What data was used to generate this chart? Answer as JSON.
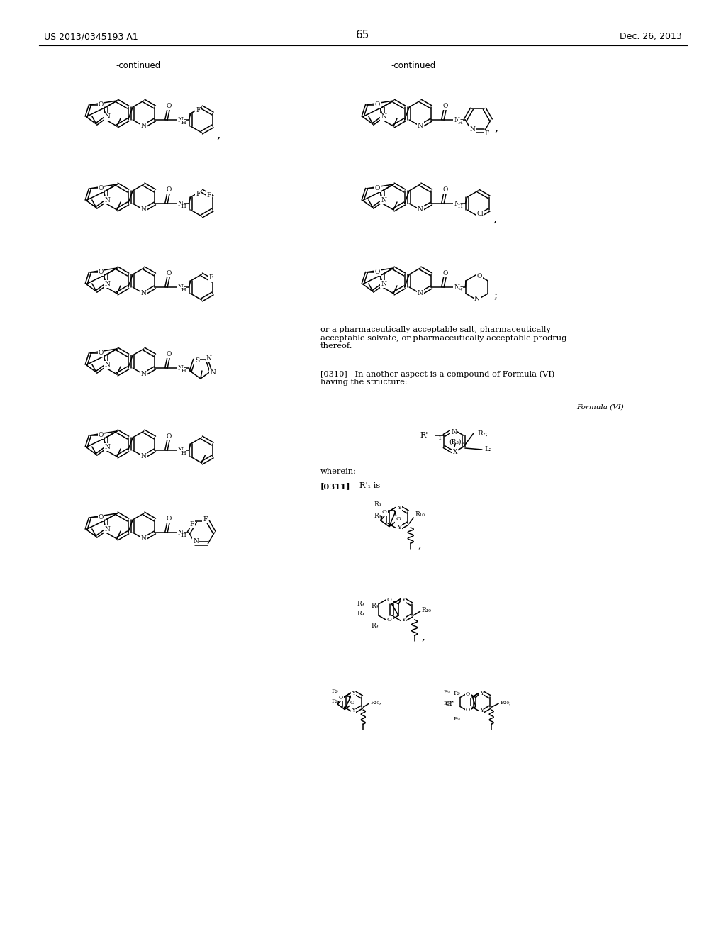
{
  "header_left": "US 2013/0345193 A1",
  "header_right": "Dec. 26, 2013",
  "page_number": "65",
  "continued": "-continued",
  "para_or": "or a pharmaceutically acceptable salt, pharmaceutically\nacceptable solvate, or pharmaceutically acceptable prodrug\nthereof.",
  "para_0310": "[0310]   In another aspect is a compound of Formula (VI)\nhaving the structure:",
  "formula_vi_label": "Formula (VI)",
  "wherein": "wherein:",
  "para_0311": "[0311]   R’₁ is",
  "bg": "#ffffff"
}
